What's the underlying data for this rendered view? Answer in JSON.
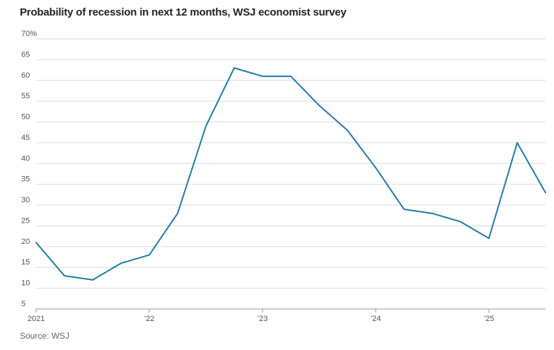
{
  "title": "Probability of recession in next 12 months, WSJ economist survey",
  "source": "Source: WSJ",
  "colors": {
    "line": "#1f7ba8",
    "grid": "#dcdcdc",
    "axis": "#999999"
  },
  "chart_data": {
    "type": "line",
    "title": "Probability of recession in next 12 months, WSJ economist survey",
    "xlabel": "",
    "ylabel": "",
    "ylim": [
      5,
      70
    ],
    "xlim": [
      2021.0,
      2025.5
    ],
    "y_ticks": [
      {
        "value": 70,
        "label": "70%"
      },
      {
        "value": 65,
        "label": "65"
      },
      {
        "value": 60,
        "label": "60"
      },
      {
        "value": 55,
        "label": "55"
      },
      {
        "value": 50,
        "label": "50"
      },
      {
        "value": 45,
        "label": "45"
      },
      {
        "value": 40,
        "label": "40"
      },
      {
        "value": 35,
        "label": "35"
      },
      {
        "value": 30,
        "label": "30"
      },
      {
        "value": 25,
        "label": "25"
      },
      {
        "value": 20,
        "label": "20"
      },
      {
        "value": 15,
        "label": "15"
      },
      {
        "value": 10,
        "label": "10"
      },
      {
        "value": 5,
        "label": "5"
      }
    ],
    "x_ticks": [
      {
        "value": 2021,
        "label": "2021"
      },
      {
        "value": 2022,
        "label": "’22"
      },
      {
        "value": 2023,
        "label": "’23"
      },
      {
        "value": 2024,
        "label": "’24"
      },
      {
        "value": 2025,
        "label": "’25"
      }
    ],
    "grid": true,
    "series": [
      {
        "x": [
          2021.0,
          2021.25,
          2021.5,
          2021.75,
          2022.0,
          2022.25,
          2022.5,
          2022.75,
          2023.0,
          2023.25,
          2023.5,
          2023.75,
          2024.0,
          2024.25,
          2024.5,
          2024.75,
          2025.0,
          2025.25,
          2025.5
        ],
        "values": [
          21,
          13,
          12,
          16,
          18,
          28,
          49,
          63,
          61,
          61,
          54,
          48,
          39,
          29,
          28,
          26,
          22,
          45,
          33
        ]
      }
    ]
  }
}
